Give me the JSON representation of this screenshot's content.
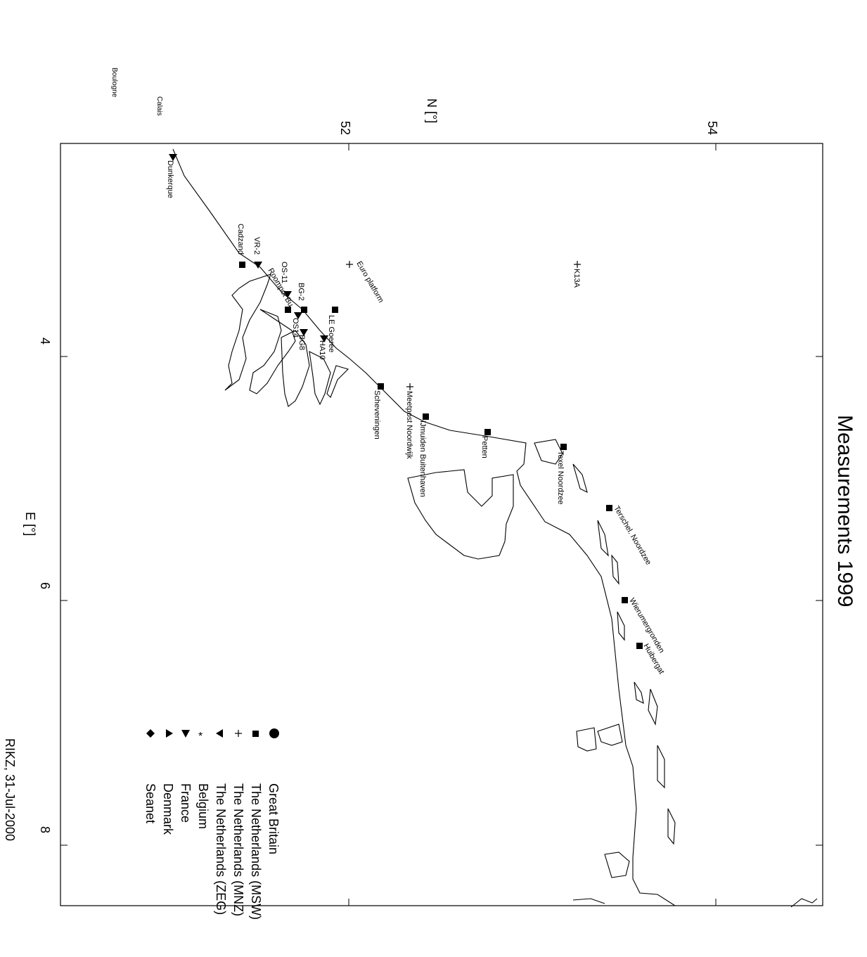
{
  "title": "Measurements 1999",
  "x_axis_label": "E [°]",
  "y_axis_label": "N [°]",
  "x_ticks": [
    "4",
    "6",
    "8"
  ],
  "y_ticks": [
    "52",
    "54"
  ],
  "credit": "RIKZ, 31-Jul-2000",
  "outside_labels": [
    "Boulogne",
    "Calais"
  ],
  "legend": [
    {
      "symbol": "circle",
      "label": "Great Britain"
    },
    {
      "symbol": "square",
      "label": "The Netherlands (MSW)"
    },
    {
      "symbol": "plus",
      "label": "The Netherlands (MNZ)"
    },
    {
      "symbol": "triangle-left",
      "label": "The Netherlands (ZEG)"
    },
    {
      "symbol": "asterisk",
      "label": "Belgium"
    },
    {
      "symbol": "triangle-down",
      "label": "France"
    },
    {
      "symbol": "triangle-right",
      "label": "Denmark"
    },
    {
      "symbol": "diamond",
      "label": "Seanet"
    }
  ],
  "stations": [
    {
      "name": "Dunkerque",
      "symbol": "triangle-down"
    },
    {
      "name": "Cadzand",
      "symbol": "square"
    },
    {
      "name": "VR-2",
      "symbol": "triangle-down"
    },
    {
      "name": "Roompot Bu",
      "symbol": "square"
    },
    {
      "name": "OS-11",
      "symbol": "triangle-down"
    },
    {
      "name": "BG-2",
      "symbol": "square"
    },
    {
      "name": "OS14",
      "symbol": "triangle-down"
    },
    {
      "name": "BG8",
      "symbol": "triangle-down"
    },
    {
      "name": "HA10",
      "symbol": "triangle-down"
    },
    {
      "name": "LE Goeree",
      "symbol": "square"
    },
    {
      "name": "Euro platform",
      "symbol": "plus"
    },
    {
      "name": "K13A",
      "symbol": "plus"
    },
    {
      "name": "Scheveningen",
      "symbol": "square"
    },
    {
      "name": "Meetpost Noordwijk",
      "symbol": "plus"
    },
    {
      "name": "IJmuiden Buitenhaven",
      "symbol": "square"
    },
    {
      "name": "Petten",
      "symbol": "square"
    },
    {
      "name": "Texel Noordzee",
      "symbol": "square"
    },
    {
      "name": "Terschel. Noordzee",
      "symbol": "square"
    },
    {
      "name": "Wierumergronden",
      "symbol": "square"
    },
    {
      "name": "Huibergat",
      "symbol": "square"
    }
  ]
}
